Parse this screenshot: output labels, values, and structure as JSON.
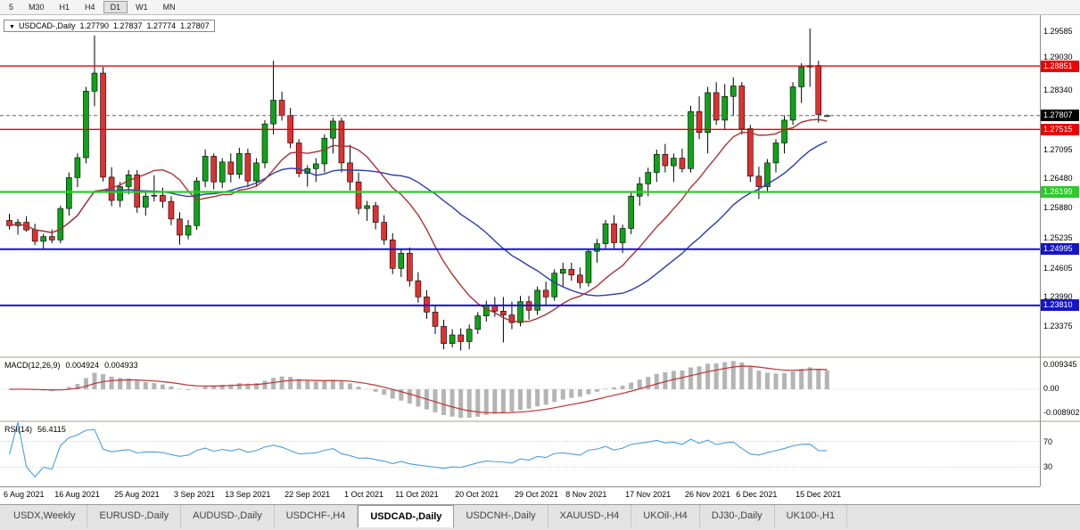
{
  "toolbar": {
    "periods": [
      {
        "label": "5",
        "active": false
      },
      {
        "label": "M30",
        "active": false
      },
      {
        "label": "H1",
        "active": false
      },
      {
        "label": "H4",
        "active": false
      },
      {
        "label": "D1",
        "active": true
      },
      {
        "label": "W1",
        "active": false
      },
      {
        "label": "MN",
        "active": false
      }
    ]
  },
  "chart": {
    "symbol_label": "USDCAD-,Daily",
    "ohlc": {
      "open": "1.27790",
      "high": "1.27837",
      "low": "1.27774",
      "close": "1.27807"
    },
    "current_price": "1.27807",
    "price_axis_labels": [
      "1.29585",
      "1.29030",
      "1.28340",
      "1.27095",
      "1.26480",
      "1.25880",
      "1.25235",
      "1.24605",
      "1.23990",
      "1.23375"
    ],
    "levels": [
      {
        "price": 1.28851,
        "label": "1.28851",
        "color": "#ee0000",
        "stroke_width": 1.4
      },
      {
        "price": 1.27515,
        "label": "1.27515",
        "color": "#ee0000",
        "stroke_width": 1.4
      },
      {
        "price": 1.26199,
        "label": "1.26199",
        "color": "#2fc82f",
        "stroke_width": 2.2
      },
      {
        "price": 1.24995,
        "label": "1.24995",
        "color": "#1515cd",
        "stroke_width": 2
      },
      {
        "price": 1.2381,
        "label": "1.23810",
        "color": "#1515cd",
        "stroke_width": 2
      }
    ]
  },
  "chart_data": {
    "type": "candlestick",
    "title": "USDCAD-,Daily",
    "symbol": "USDCAD-",
    "timeframe": "Daily",
    "y_range": [
      1.2274,
      1.2992
    ],
    "overlays": {
      "ma_fast_period": 12,
      "ma_slow_period": 26
    },
    "date_labels": [
      {
        "text": "6 Aug 2021",
        "i": 0
      },
      {
        "text": "16 Aug 2021",
        "i": 6
      },
      {
        "text": "25 Aug 2021",
        "i": 13
      },
      {
        "text": "3 Sep 2021",
        "i": 20
      },
      {
        "text": "13 Sep 2021",
        "i": 26
      },
      {
        "text": "22 Sep 2021",
        "i": 33
      },
      {
        "text": "1 Oct 2021",
        "i": 40
      },
      {
        "text": "11 Oct 2021",
        "i": 46
      },
      {
        "text": "20 Oct 2021",
        "i": 53
      },
      {
        "text": "29 Oct 2021",
        "i": 60
      },
      {
        "text": "8 Nov 2021",
        "i": 66
      },
      {
        "text": "17 Nov 2021",
        "i": 73
      },
      {
        "text": "26 Nov 2021",
        "i": 80
      },
      {
        "text": "6 Dec 2021",
        "i": 86
      },
      {
        "text": "15 Dec 2021",
        "i": 93
      }
    ],
    "candles": [
      [
        1.256,
        1.2574,
        1.2541,
        1.2549
      ],
      [
        1.2549,
        1.2563,
        1.253,
        1.2556
      ],
      [
        1.2556,
        1.2569,
        1.2536,
        1.254
      ],
      [
        1.254,
        1.2553,
        1.2508,
        1.2516
      ],
      [
        1.2516,
        1.2532,
        1.2501,
        1.2526
      ],
      [
        1.2526,
        1.2541,
        1.2512,
        1.2519
      ],
      [
        1.2519,
        1.2591,
        1.2512,
        1.2585
      ],
      [
        1.2585,
        1.2661,
        1.257,
        1.265
      ],
      [
        1.265,
        1.2701,
        1.263,
        1.2692
      ],
      [
        1.2692,
        1.2841,
        1.268,
        1.2832
      ],
      [
        1.2832,
        1.2949,
        1.28,
        1.287
      ],
      [
        1.287,
        1.2883,
        1.2642,
        1.2651
      ],
      [
        1.2651,
        1.2672,
        1.259,
        1.2602
      ],
      [
        1.2602,
        1.2641,
        1.2588,
        1.2631
      ],
      [
        1.2631,
        1.2666,
        1.2615,
        1.2656
      ],
      [
        1.2656,
        1.2666,
        1.2576,
        1.2588
      ],
      [
        1.2588,
        1.2621,
        1.257,
        1.2611
      ],
      [
        1.2611,
        1.2655,
        1.26,
        1.2613
      ],
      [
        1.2613,
        1.2629,
        1.2586,
        1.26
      ],
      [
        1.26,
        1.2611,
        1.255,
        1.2563
      ],
      [
        1.2563,
        1.2577,
        1.2509,
        1.2529
      ],
      [
        1.2529,
        1.2561,
        1.252,
        1.2549
      ],
      [
        1.2549,
        1.2651,
        1.254,
        1.2643
      ],
      [
        1.2643,
        1.2709,
        1.263,
        1.2695
      ],
      [
        1.2695,
        1.2701,
        1.2625,
        1.2641
      ],
      [
        1.2641,
        1.2691,
        1.2628,
        1.2683
      ],
      [
        1.2683,
        1.2701,
        1.264,
        1.2657
      ],
      [
        1.2657,
        1.2713,
        1.2648,
        1.2701
      ],
      [
        1.2701,
        1.2711,
        1.263,
        1.2643
      ],
      [
        1.2643,
        1.2691,
        1.2631,
        1.2681
      ],
      [
        1.2681,
        1.2771,
        1.267,
        1.2763
      ],
      [
        1.2763,
        1.2896,
        1.2741,
        1.2813
      ],
      [
        1.2813,
        1.2831,
        1.277,
        1.2781
      ],
      [
        1.2781,
        1.2797,
        1.2712,
        1.2723
      ],
      [
        1.2723,
        1.2731,
        1.2651,
        1.2659
      ],
      [
        1.2659,
        1.2676,
        1.2631,
        1.2669
      ],
      [
        1.2669,
        1.2691,
        1.2641,
        1.2679
      ],
      [
        1.2679,
        1.2741,
        1.2661,
        1.2733
      ],
      [
        1.2733,
        1.2776,
        1.2701,
        1.2769
      ],
      [
        1.2769,
        1.2776,
        1.2661,
        1.2681
      ],
      [
        1.2681,
        1.2719,
        1.2623,
        1.2641
      ],
      [
        1.2641,
        1.2661,
        1.2573,
        1.2585
      ],
      [
        1.2585,
        1.2601,
        1.2559,
        1.2591
      ],
      [
        1.2591,
        1.2599,
        1.2541,
        1.2556
      ],
      [
        1.2556,
        1.2571,
        1.2509,
        1.2519
      ],
      [
        1.2519,
        1.2533,
        1.2447,
        1.2459
      ],
      [
        1.2459,
        1.2501,
        1.2441,
        1.2491
      ],
      [
        1.2491,
        1.2503,
        1.2421,
        1.2433
      ],
      [
        1.2433,
        1.2451,
        1.2387,
        1.2399
      ],
      [
        1.2399,
        1.2413,
        1.2353,
        1.2367
      ],
      [
        1.2367,
        1.2381,
        1.2321,
        1.2337
      ],
      [
        1.2337,
        1.2351,
        1.2289,
        1.2301
      ],
      [
        1.2301,
        1.2331,
        1.2293,
        1.2319
      ],
      [
        1.2319,
        1.2333,
        1.2286,
        1.2305
      ],
      [
        1.2305,
        1.2341,
        1.2289,
        1.2331
      ],
      [
        1.2331,
        1.2367,
        1.2321,
        1.2359
      ],
      [
        1.2359,
        1.2391,
        1.2347,
        1.2381
      ],
      [
        1.2381,
        1.2399,
        1.2357,
        1.2369
      ],
      [
        1.2369,
        1.2399,
        1.2303,
        1.2361
      ],
      [
        1.2361,
        1.2389,
        1.2331,
        1.2345
      ],
      [
        1.2345,
        1.2401,
        1.2337,
        1.2389
      ],
      [
        1.2389,
        1.2401,
        1.2351,
        1.2371
      ],
      [
        1.2371,
        1.2421,
        1.2361,
        1.2413
      ],
      [
        1.2413,
        1.2431,
        1.2381,
        1.2399
      ],
      [
        1.2399,
        1.2457,
        1.2391,
        1.2449
      ],
      [
        1.2449,
        1.2471,
        1.2421,
        1.2457
      ],
      [
        1.2457,
        1.2471,
        1.2433,
        1.2445
      ],
      [
        1.2445,
        1.2461,
        1.2417,
        1.2429
      ],
      [
        1.2429,
        1.2501,
        1.2421,
        1.2495
      ],
      [
        1.2495,
        1.2521,
        1.2471,
        1.2511
      ],
      [
        1.2511,
        1.2561,
        1.2501,
        1.2553
      ],
      [
        1.2553,
        1.2571,
        1.2501,
        1.2513
      ],
      [
        1.2513,
        1.2551,
        1.2491,
        1.2543
      ],
      [
        1.2543,
        1.2621,
        1.2531,
        1.2611
      ],
      [
        1.2611,
        1.2651,
        1.2591,
        1.2637
      ],
      [
        1.2637,
        1.2671,
        1.2611,
        1.2661
      ],
      [
        1.2661,
        1.2709,
        1.2641,
        1.2699
      ],
      [
        1.2699,
        1.2721,
        1.2661,
        1.2675
      ],
      [
        1.2675,
        1.2701,
        1.2641,
        1.2691
      ],
      [
        1.2691,
        1.2711,
        1.2661,
        1.2669
      ],
      [
        1.2669,
        1.2801,
        1.2661,
        1.2789
      ],
      [
        1.2789,
        1.2821,
        1.2731,
        1.2745
      ],
      [
        1.2745,
        1.2841,
        1.2701,
        1.2829
      ],
      [
        1.2829,
        1.2851,
        1.2761,
        1.2771
      ],
      [
        1.2771,
        1.2847,
        1.2751,
        1.2821
      ],
      [
        1.2821,
        1.2861,
        1.2781,
        1.2843
      ],
      [
        1.2843,
        1.2851,
        1.2741,
        1.2753
      ],
      [
        1.2753,
        1.2761,
        1.2641,
        1.2653
      ],
      [
        1.2653,
        1.2673,
        1.2605,
        1.2631
      ],
      [
        1.2631,
        1.2689,
        1.2621,
        1.2681
      ],
      [
        1.2681,
        1.2731,
        1.2661,
        1.2723
      ],
      [
        1.2723,
        1.2781,
        1.2701,
        1.2771
      ],
      [
        1.2771,
        1.2851,
        1.2761,
        1.2841
      ],
      [
        1.2841,
        1.2891,
        1.2807,
        1.2883
      ],
      [
        1.2883,
        1.2964,
        1.2841,
        1.2886
      ],
      [
        1.2886,
        1.2896,
        1.2766,
        1.2783
      ],
      [
        1.2779,
        1.27837,
        1.27774,
        1.27807
      ]
    ]
  },
  "indicators": {
    "macd": {
      "name": "MACD(12,26,9)",
      "value": "0.004924",
      "signal_value": "0.004933",
      "fast": 12,
      "slow": 26,
      "signal": 9,
      "scale": [
        "0.009345",
        "0.00",
        "-0.008902"
      ]
    },
    "rsi": {
      "name": "RSI(14)",
      "value": "56.4115",
      "period": 14,
      "levels": [
        70,
        30
      ],
      "scale": [
        "70",
        "30"
      ]
    }
  },
  "tabs": [
    {
      "label": "USDX,Weekly",
      "active": false
    },
    {
      "label": "EURUSD-,Daily",
      "active": false
    },
    {
      "label": "AUDUSD-,Daily",
      "active": false
    },
    {
      "label": "USDCHF-,H4",
      "active": false
    },
    {
      "label": "USDCAD-,Daily",
      "active": true
    },
    {
      "label": "USDCNH-,Daily",
      "active": false
    },
    {
      "label": "XAUUSD-,H4",
      "active": false
    },
    {
      "label": "UKOil-,H4",
      "active": false
    },
    {
      "label": "DJ30-,Daily",
      "active": false
    },
    {
      "label": "UK100-,H1",
      "active": false
    }
  ],
  "colors": {
    "bull": "#0fa318",
    "bear": "#e03131",
    "outline": "#000000",
    "ma_fast": "#a83333",
    "ma_slow": "#2a3cb4",
    "macd_hist": "#b4b4b4",
    "macd_signal": "#c03030",
    "rsi_line": "#4a9ede",
    "current_badge_bg": "#000000",
    "current_price_line": "#666666"
  }
}
